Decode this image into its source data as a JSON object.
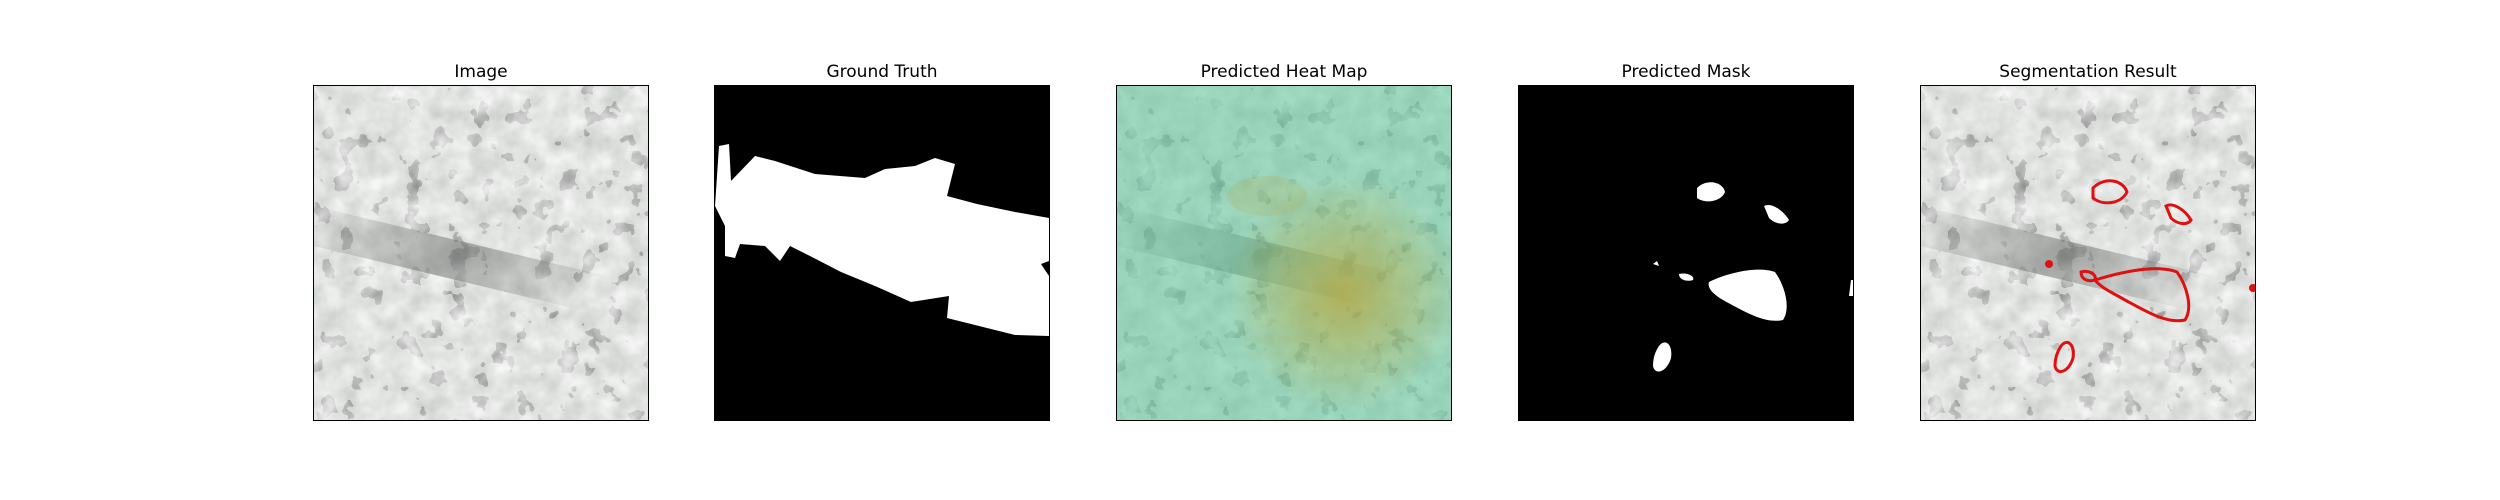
{
  "panels": [
    {
      "title": "Image"
    },
    {
      "title": "Ground Truth"
    },
    {
      "title": "Predicted Heat Map"
    },
    {
      "title": "Predicted Mask"
    },
    {
      "title": "Segmentation Result"
    }
  ],
  "colors": {
    "terrain_base": "#8c948e",
    "terrain_dark": "#3c403d",
    "mask_bg": "#000000",
    "mask_fg": "#ffffff",
    "heat_overlay": "#5fc79a",
    "heat_hot": "#b8a63a",
    "contour": "#e01010"
  }
}
